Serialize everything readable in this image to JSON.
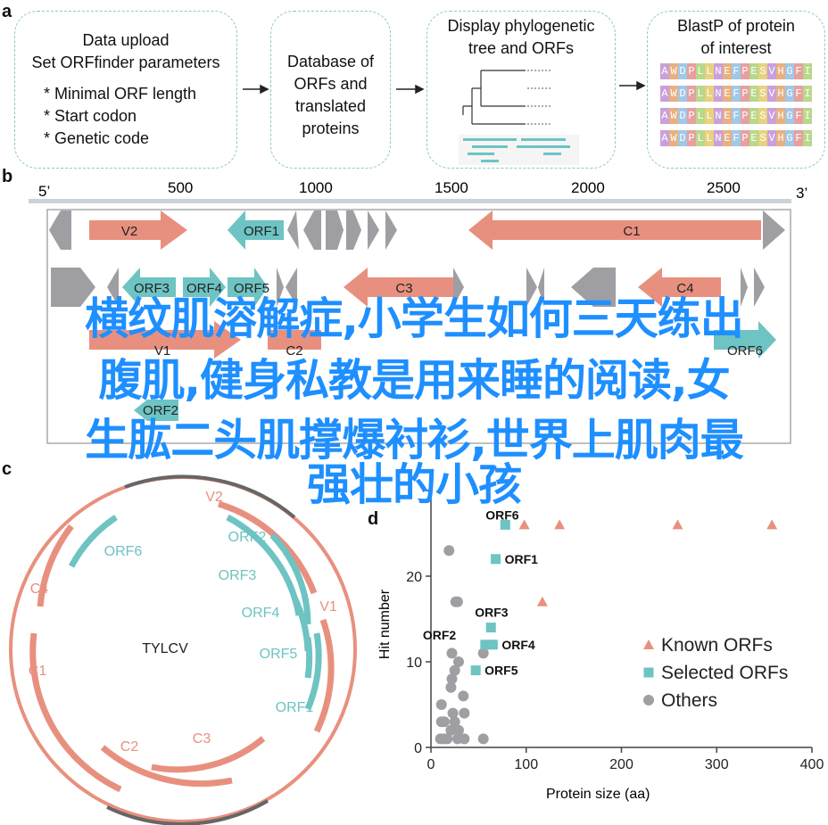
{
  "panels": {
    "a": "a",
    "b": "b",
    "c": "c",
    "d": "d"
  },
  "panel_a": {
    "box1": {
      "title1": "Data upload",
      "title2": "Set ORFfinder parameters",
      "items": [
        "* Minimal ORF length",
        "* Start codon",
        "* Genetic code"
      ]
    },
    "box2": [
      "Database of",
      "ORFs and",
      "translated",
      "proteins"
    ],
    "box3": [
      "Display phylogenetic",
      "tree and ORFs"
    ],
    "box4": [
      "BlastP of protein",
      "of interest"
    ],
    "sequence": "AWDPLLNEFPESVHGFI"
  },
  "panel_b": {
    "five_prime": "5’",
    "three_prime": "3’",
    "ticks": [
      "500",
      "1000",
      "1500",
      "2000",
      "2500"
    ],
    "genes": {
      "V2": "V2",
      "ORF1": "ORF1",
      "C1": "C1",
      "ORF3": "ORF3",
      "ORF4": "ORF4",
      "ORF5": "ORF5",
      "C3": "C3",
      "C4": "C4",
      "V1": "V1",
      "C2": "C2",
      "ORF6": "ORF6",
      "ORF2": "ORF2"
    }
  },
  "panel_c": {
    "center": "TYLCV",
    "labels": {
      "V2": "V2",
      "V1": "V1",
      "C1": "C1",
      "C2": "C2",
      "C3": "C3",
      "C4": "C4",
      "ORF1": "ORF1",
      "ORF2": "ORF2",
      "ORF3": "ORF3",
      "ORF4": "ORF4",
      "ORF5": "ORF5",
      "ORF6": "ORF6"
    }
  },
  "colors": {
    "known": "#e8907f",
    "selected": "#6ec3c3",
    "others": "#9e9ea3",
    "overlay": "#1e8fff"
  },
  "chart_data": {
    "type": "scatter",
    "xlabel": "Protein size (aa)",
    "ylabel": "Hit number",
    "xlim": [
      0,
      400
    ],
    "ylim": [
      0,
      30
    ],
    "xticks": [
      "0",
      "100",
      "200",
      "300",
      "400"
    ],
    "yticks": [
      "0",
      "10",
      "20"
    ],
    "legend_placement": "right",
    "grid": false,
    "series": [
      {
        "name": "Known ORFs",
        "marker": "triangle",
        "points": [
          [
            98,
            26
          ],
          [
            117,
            17
          ],
          [
            135,
            26
          ],
          [
            259,
            26
          ],
          [
            358,
            26
          ]
        ]
      },
      {
        "name": "Selected ORFs",
        "marker": "square",
        "points": [
          [
            78,
            26,
            "ORF6"
          ],
          [
            68,
            22,
            "ORF1"
          ],
          [
            63,
            14,
            "ORF3"
          ],
          [
            57,
            12,
            "ORF2"
          ],
          [
            65,
            12,
            "ORF4"
          ],
          [
            47,
            9,
            "ORF5"
          ]
        ]
      },
      {
        "name": "Others",
        "marker": "circle",
        "points": [
          [
            19,
            23
          ],
          [
            26,
            17
          ],
          [
            28,
            17
          ],
          [
            22,
            11
          ],
          [
            55,
            11
          ],
          [
            29,
            10
          ],
          [
            25,
            9
          ],
          [
            22,
            8
          ],
          [
            21,
            7
          ],
          [
            34,
            6
          ],
          [
            11,
            5
          ],
          [
            11,
            3
          ],
          [
            14,
            3
          ],
          [
            25,
            3
          ],
          [
            23,
            4
          ],
          [
            35,
            4
          ],
          [
            21,
            2
          ],
          [
            29,
            2
          ],
          [
            10,
            1
          ],
          [
            14,
            1
          ],
          [
            17,
            1
          ],
          [
            28,
            1
          ],
          [
            35,
            1
          ],
          [
            55,
            1
          ]
        ]
      }
    ]
  },
  "overlay": [
    "横纹肌溶解症,小学生如何三天练出",
    "腹肌,健身私教是用来睡的阅读,女",
    "生肱二头肌撑爆衬衫,世界上肌肉最",
    "强壮的小孩"
  ]
}
